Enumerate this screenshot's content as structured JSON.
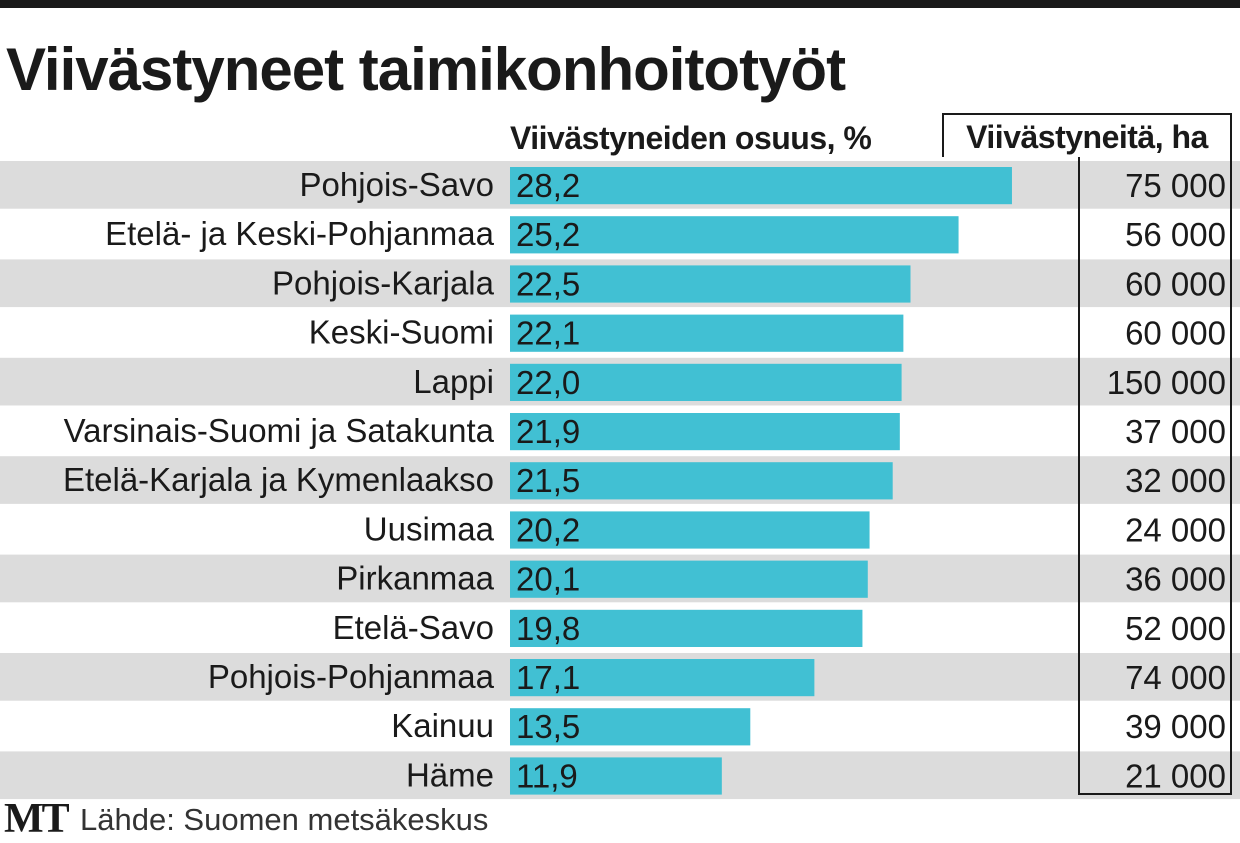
{
  "title": "Viivästyneet taimikonhoitotyöt",
  "source": {
    "logo": "MT",
    "text": "Lähde: Suomen metsäkeskus"
  },
  "colors": {
    "bar": "#41c0d3",
    "stripe": "#dcdcdc",
    "text": "#1a1a1a"
  },
  "chart_data": {
    "type": "bar",
    "orientation": "horizontal",
    "title": "Viivästyneet taimikonhoitotyöt",
    "categories": [
      "Pohjois-Savo",
      "Etelä- ja Keski-Pohjanmaa",
      "Pohjois-Karjala",
      "Keski-Suomi",
      "Lappi",
      "Varsinais-Suomi ja Satakunta",
      "Etelä-Karjala ja Kymenlaakso",
      "Uusimaa",
      "Pirkanmaa",
      "Etelä-Savo",
      "Pohjois-Pohjanmaa",
      "Kainuu",
      "Häme"
    ],
    "series": [
      {
        "name": "Viivästyneiden osuus, %",
        "values": [
          28.2,
          25.2,
          22.5,
          22.1,
          22.0,
          21.9,
          21.5,
          20.2,
          20.1,
          19.8,
          17.1,
          13.5,
          11.9
        ],
        "labels": [
          "28,2",
          "25,2",
          "22,5",
          "22,1",
          "22,0",
          "21,9",
          "21,5",
          "20,2",
          "20,1",
          "19,8",
          "17,1",
          "13,5",
          "11,9"
        ]
      },
      {
        "name": "Viivästyneitä, ha",
        "values": [
          75000,
          56000,
          60000,
          60000,
          150000,
          37000,
          32000,
          24000,
          36000,
          52000,
          74000,
          39000,
          21000
        ],
        "labels": [
          "75 000",
          "56 000",
          "60 000",
          "60 000",
          "150 000",
          "37 000",
          "32 000",
          "24 000",
          "36 000",
          "52 000",
          "74 000",
          "39 000",
          "21 000"
        ]
      }
    ],
    "grid": false,
    "legend": "none"
  }
}
